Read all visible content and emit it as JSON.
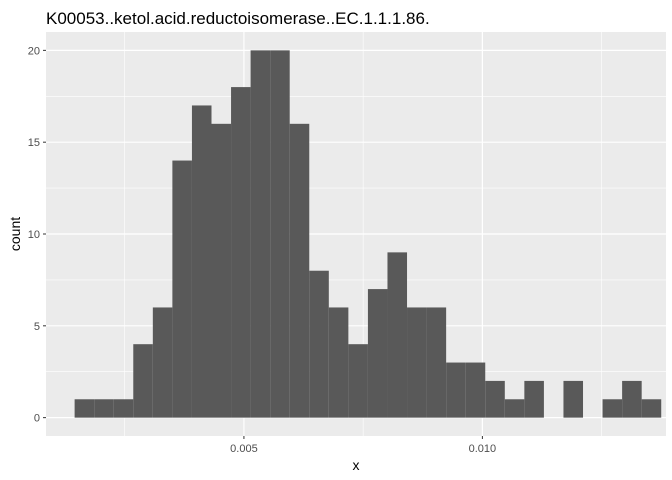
{
  "chart_data": {
    "type": "bar",
    "subtype": "histogram",
    "title": "K00053..ketol.acid.reductoisomerase..EC.1.1.1.86.",
    "xlabel": "x",
    "ylabel": "count",
    "xlim": [
      0.00085,
      0.01385
    ],
    "ylim": [
      -1,
      21
    ],
    "x_major_ticks": [
      0.005,
      0.01
    ],
    "x_minor_ticks": [
      0.0025,
      0.0075,
      0.0125
    ],
    "x_tick_labels": [
      "0.005",
      "0.010"
    ],
    "y_major_ticks": [
      0,
      5,
      10,
      15,
      20
    ],
    "y_tick_labels": [
      "0",
      "5",
      "10",
      "15",
      "20"
    ],
    "grid": true,
    "panel_background": "#ebebeb",
    "bar_color": "#595959",
    "grid_color": "#ffffff",
    "bins": [
      {
        "x0": 0.00145,
        "x1": 0.00186,
        "count": 1
      },
      {
        "x0": 0.00186,
        "x1": 0.00227,
        "count": 1
      },
      {
        "x0": 0.00227,
        "x1": 0.00268,
        "count": 1
      },
      {
        "x0": 0.00268,
        "x1": 0.00309,
        "count": 4
      },
      {
        "x0": 0.00309,
        "x1": 0.0035,
        "count": 6
      },
      {
        "x0": 0.0035,
        "x1": 0.00391,
        "count": 14
      },
      {
        "x0": 0.00391,
        "x1": 0.00432,
        "count": 17
      },
      {
        "x0": 0.00432,
        "x1": 0.00473,
        "count": 16
      },
      {
        "x0": 0.00473,
        "x1": 0.00514,
        "count": 18
      },
      {
        "x0": 0.00514,
        "x1": 0.00555,
        "count": 20
      },
      {
        "x0": 0.00555,
        "x1": 0.00596,
        "count": 20
      },
      {
        "x0": 0.00596,
        "x1": 0.00637,
        "count": 16
      },
      {
        "x0": 0.00637,
        "x1": 0.00678,
        "count": 8
      },
      {
        "x0": 0.00678,
        "x1": 0.00719,
        "count": 6
      },
      {
        "x0": 0.00719,
        "x1": 0.0076,
        "count": 4
      },
      {
        "x0": 0.0076,
        "x1": 0.00801,
        "count": 7
      },
      {
        "x0": 0.00801,
        "x1": 0.00842,
        "count": 9
      },
      {
        "x0": 0.00842,
        "x1": 0.00883,
        "count": 6
      },
      {
        "x0": 0.00883,
        "x1": 0.00924,
        "count": 6
      },
      {
        "x0": 0.00924,
        "x1": 0.00965,
        "count": 3
      },
      {
        "x0": 0.00965,
        "x1": 0.01006,
        "count": 3
      },
      {
        "x0": 0.01006,
        "x1": 0.01047,
        "count": 2
      },
      {
        "x0": 0.01047,
        "x1": 0.01088,
        "count": 1
      },
      {
        "x0": 0.01088,
        "x1": 0.01129,
        "count": 2
      },
      {
        "x0": 0.01129,
        "x1": 0.0117,
        "count": 0
      },
      {
        "x0": 0.0117,
        "x1": 0.01211,
        "count": 2
      },
      {
        "x0": 0.01211,
        "x1": 0.01252,
        "count": 0
      },
      {
        "x0": 0.01252,
        "x1": 0.01293,
        "count": 1
      },
      {
        "x0": 0.01293,
        "x1": 0.01334,
        "count": 2
      },
      {
        "x0": 0.01334,
        "x1": 0.01375,
        "count": 1
      }
    ]
  }
}
